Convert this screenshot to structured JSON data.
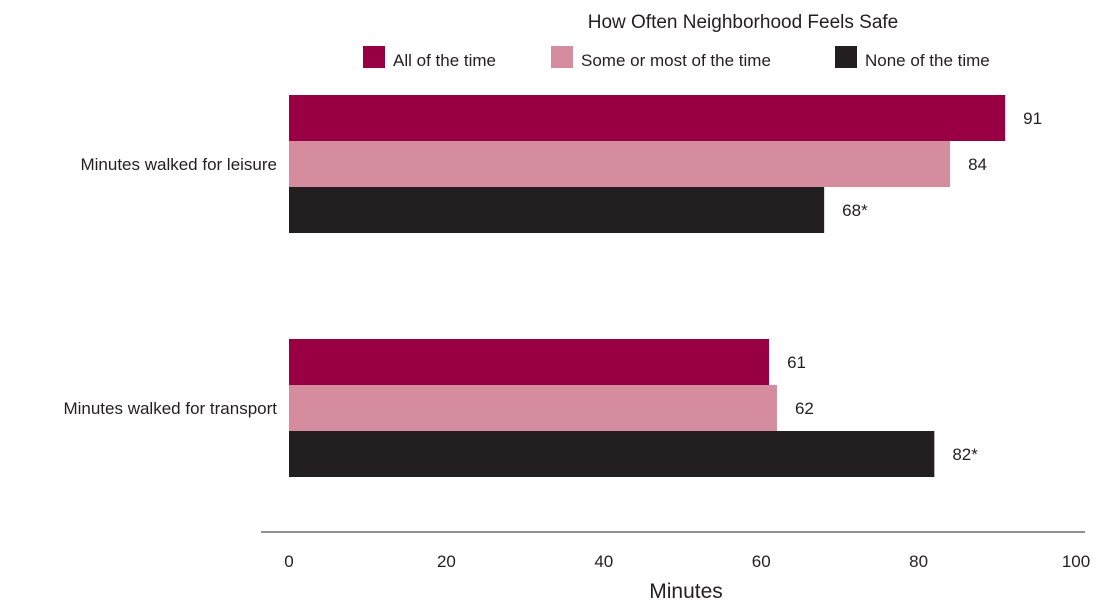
{
  "chart_data": {
    "type": "bar",
    "orientation": "horizontal",
    "legend_title": "How Often Neighborhood Feels Safe",
    "legend_placement": "top",
    "xlabel": "Minutes",
    "ylabel": "",
    "xlim": [
      0,
      100
    ],
    "xticks": [
      "0",
      "20",
      "40",
      "60",
      "80",
      "100"
    ],
    "grid": false,
    "categories": [
      "Minutes walked for leisure",
      "Minutes walked for transport"
    ],
    "series": [
      {
        "name": "All of the time",
        "color": "#990044",
        "values": [
          91,
          61
        ],
        "labels": [
          "91",
          "61"
        ]
      },
      {
        "name": "Some or most of the time",
        "color": "#d58c9f",
        "values": [
          84,
          62
        ],
        "labels": [
          "84",
          "62"
        ]
      },
      {
        "name": "None of the time",
        "color": "#231f20",
        "values": [
          68,
          82
        ],
        "labels": [
          "68*",
          "82*"
        ]
      }
    ]
  }
}
